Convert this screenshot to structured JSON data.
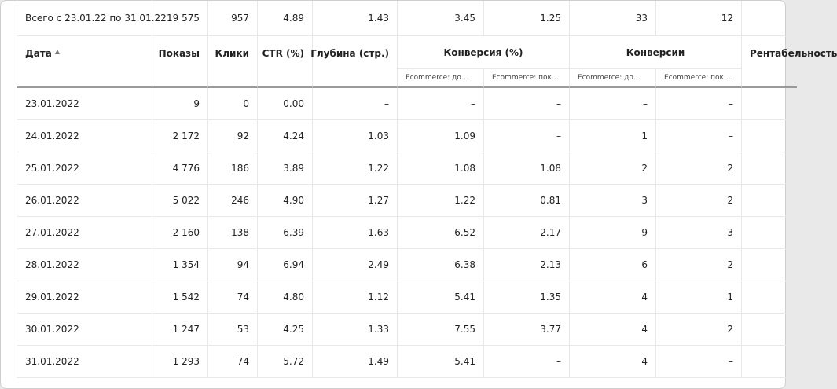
{
  "totals": {
    "label": "Всего с 23.01.22 по 31.01.22",
    "values": [
      "19 575",
      "957",
      "4.89",
      "1.43",
      "3.45",
      "1.25",
      "33",
      "12",
      ""
    ]
  },
  "headers": {
    "date": "Дата",
    "sort_indicator": "▲",
    "impressions": "Показы",
    "clicks": "Клики",
    "ctr": "CTR (%)",
    "depth": "Глубина (стр.)",
    "conversion_rate": "Конверсия (%)",
    "conversions": "Конверсии",
    "profitability": "Рентабельность",
    "sub_cr_1": "Ecommerce: до…",
    "sub_cr_2": "Ecommerce: пок…",
    "sub_conv_1": "Ecommerce: до…",
    "sub_conv_2": "Ecommerce: пок…"
  },
  "rows": [
    {
      "date": "23.01.2022",
      "impressions": "9",
      "clicks": "0",
      "ctr": "0.00",
      "depth": "–",
      "cr1": "–",
      "cr2": "–",
      "conv1": "–",
      "conv2": "–",
      "profit": ""
    },
    {
      "date": "24.01.2022",
      "impressions": "2 172",
      "clicks": "92",
      "ctr": "4.24",
      "depth": "1.03",
      "cr1": "1.09",
      "cr2": "–",
      "conv1": "1",
      "conv2": "–",
      "profit": ""
    },
    {
      "date": "25.01.2022",
      "impressions": "4 776",
      "clicks": "186",
      "ctr": "3.89",
      "depth": "1.22",
      "cr1": "1.08",
      "cr2": "1.08",
      "conv1": "2",
      "conv2": "2",
      "profit": ""
    },
    {
      "date": "26.01.2022",
      "impressions": "5 022",
      "clicks": "246",
      "ctr": "4.90",
      "depth": "1.27",
      "cr1": "1.22",
      "cr2": "0.81",
      "conv1": "3",
      "conv2": "2",
      "profit": ""
    },
    {
      "date": "27.01.2022",
      "impressions": "2 160",
      "clicks": "138",
      "ctr": "6.39",
      "depth": "1.63",
      "cr1": "6.52",
      "cr2": "2.17",
      "conv1": "9",
      "conv2": "3",
      "profit": ""
    },
    {
      "date": "28.01.2022",
      "impressions": "1 354",
      "clicks": "94",
      "ctr": "6.94",
      "depth": "2.49",
      "cr1": "6.38",
      "cr2": "2.13",
      "conv1": "6",
      "conv2": "2",
      "profit": ""
    },
    {
      "date": "29.01.2022",
      "impressions": "1 542",
      "clicks": "74",
      "ctr": "4.80",
      "depth": "1.12",
      "cr1": "5.41",
      "cr2": "1.35",
      "conv1": "4",
      "conv2": "1",
      "profit": ""
    },
    {
      "date": "30.01.2022",
      "impressions": "1 247",
      "clicks": "53",
      "ctr": "4.25",
      "depth": "1.33",
      "cr1": "7.55",
      "cr2": "3.77",
      "conv1": "4",
      "conv2": "2",
      "profit": ""
    },
    {
      "date": "31.01.2022",
      "impressions": "1 293",
      "clicks": "74",
      "ctr": "5.72",
      "depth": "1.49",
      "cr1": "5.41",
      "cr2": "–",
      "conv1": "4",
      "conv2": "–",
      "profit": ""
    }
  ]
}
